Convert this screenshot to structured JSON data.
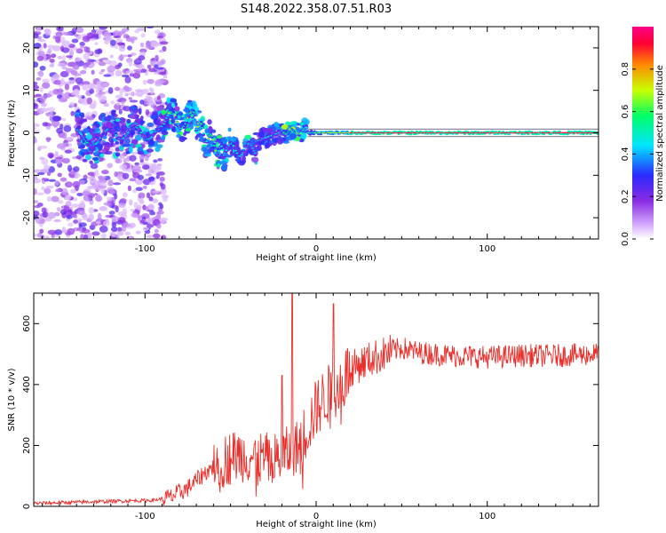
{
  "title": "S148.2022.358.07.51.R03",
  "chart_data": [
    {
      "type": "heatmap",
      "xlabel": "Height of straight line (km)",
      "ylabel": "Frequency (Hz)",
      "xlim": [
        -165,
        165
      ],
      "ylim": [
        -25,
        25
      ],
      "xticks": [
        -100,
        0,
        100
      ],
      "yticks": [
        -20,
        -10,
        0,
        10,
        20
      ],
      "colorbar": {
        "label": "Normalized spectral amplitude",
        "range": [
          0,
          1
        ],
        "ticks": [
          0.0,
          0.2,
          0.4,
          0.6,
          0.8
        ],
        "colormap": "rainbow",
        "stops": [
          "#ffffff",
          "#8a2be2",
          "#2a2aff",
          "#00e5ff",
          "#00ff66",
          "#c8ff00",
          "#ff8a00",
          "#ff0033",
          "#ff0088"
        ]
      },
      "features": {
        "noise_region_x": [
          -165,
          -88
        ],
        "carrier_freq_hz": 0.0,
        "scintillation_x": [
          -140,
          -20
        ],
        "strong_carrier_x": [
          -15,
          165
        ]
      }
    },
    {
      "type": "line",
      "xlabel": "Height of straight line (km)",
      "ylabel": "SNR (10 * v/v)",
      "xlim": [
        -165,
        165
      ],
      "ylim": [
        0,
        700
      ],
      "xticks": [
        -100,
        0,
        100
      ],
      "yticks": [
        0,
        200,
        400,
        600
      ],
      "series": [
        {
          "color": "#e8302c",
          "x": [
            -165,
            -150,
            -130,
            -110,
            -95,
            -85,
            -75,
            -65,
            -55,
            -45,
            -35,
            -25,
            -18,
            -10,
            -5,
            0,
            5,
            10,
            15,
            20,
            30,
            40,
            50,
            60,
            80,
            100,
            120,
            140,
            165
          ],
          "y": [
            10,
            12,
            15,
            18,
            20,
            30,
            60,
            110,
            150,
            170,
            160,
            150,
            170,
            200,
            260,
            320,
            360,
            380,
            420,
            450,
            480,
            500,
            520,
            505,
            495,
            490,
            495,
            495,
            500
          ],
          "peaks": [
            [
              -14,
              700
            ],
            [
              10,
              665
            ],
            [
              -20,
              430
            ]
          ]
        }
      ]
    }
  ]
}
